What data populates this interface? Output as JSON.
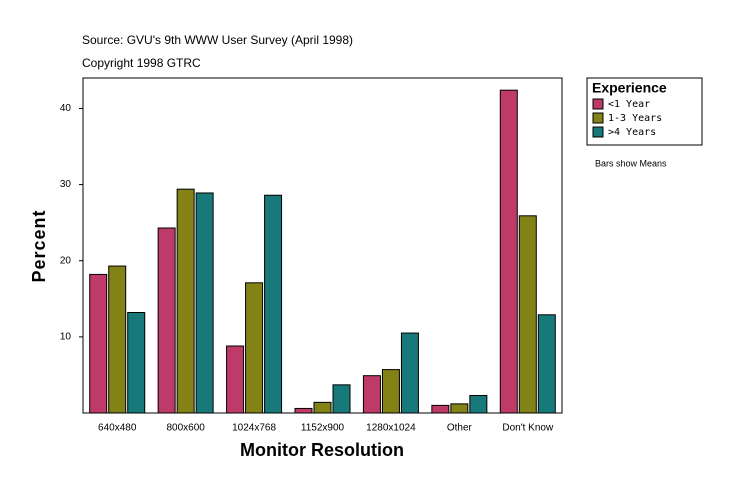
{
  "chart_data": {
    "type": "bar",
    "source": "Source: GVU's 9th WWW User Survey (April 1998)",
    "copyright": "Copyright 1998 GTRC",
    "x_label": "Monitor Resolution",
    "y_label": "Percent",
    "legend_title": "Experience",
    "note": "Bars show Means",
    "categories": [
      "640x480",
      "800x600",
      "1024x768",
      "1152x900",
      "1280x1024",
      "Other",
      "Don't Know"
    ],
    "series": [
      {
        "name": "<1 Year",
        "color": "#be3a69",
        "values": [
          18.2,
          24.3,
          8.8,
          0.6,
          4.9,
          1.0,
          42.4
        ]
      },
      {
        "name": "1-3 Years",
        "color": "#828217",
        "values": [
          19.3,
          29.4,
          17.1,
          1.4,
          5.7,
          1.2,
          25.9
        ]
      },
      {
        "name": ">4 Years",
        "color": "#17797a",
        "values": [
          13.2,
          28.9,
          28.6,
          3.7,
          10.5,
          2.3,
          12.9
        ]
      }
    ],
    "ylim": [
      0,
      44
    ],
    "yticks": [
      10,
      20,
      30,
      40
    ],
    "legend": "right"
  }
}
